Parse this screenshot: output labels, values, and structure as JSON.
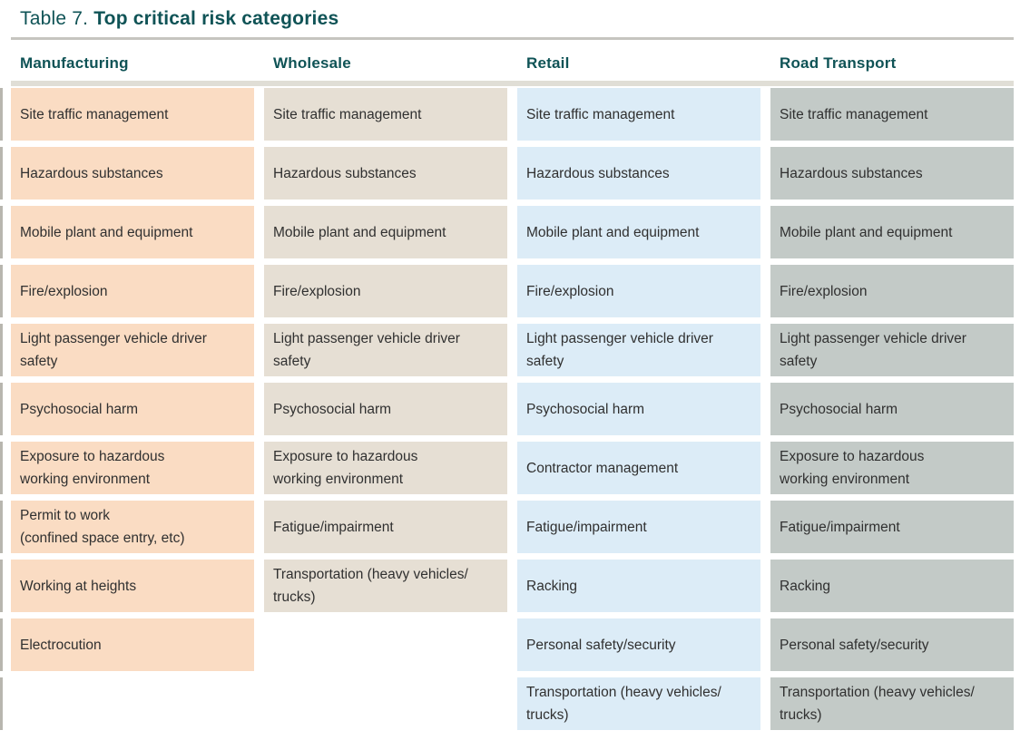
{
  "title": {
    "label_prefix": "Table 7.",
    "label_main": "Top critical risk categories"
  },
  "colors": {
    "heading_teal": "#0f5356",
    "cell_text": "#303030",
    "title_rule": "#c6c5c0",
    "header_rule": "#e0ded6",
    "manufacturing_cell": "#fadcc3",
    "wholesale_cell": "#e6dfd4",
    "retail_cell": "#dcecf7",
    "road_transport_cell": "#c3cac7"
  },
  "table": {
    "columns": [
      {
        "id": "manufacturing",
        "label": "Manufacturing",
        "cell_color": "#fadcc3",
        "items": [
          "Site traffic management",
          "Hazardous substances",
          "Mobile plant and equipment",
          "Fire/explosion",
          "Light passenger vehicle driver\nsafety",
          "Psychosocial harm",
          "Exposure to hazardous\nworking environment",
          "Permit to work\n(confined space entry, etc)",
          "Working at heights",
          "Electrocution"
        ]
      },
      {
        "id": "wholesale",
        "label": "Wholesale",
        "cell_color": "#e6dfd4",
        "items": [
          "Site traffic management",
          "Hazardous substances",
          "Mobile plant and equipment",
          "Fire/explosion",
          "Light passenger vehicle driver\nsafety",
          "Psychosocial harm",
          "Exposure to hazardous\nworking environment",
          "Fatigue/impairment",
          "Transportation (heavy vehicles/\ntrucks)"
        ]
      },
      {
        "id": "retail",
        "label": "Retail",
        "cell_color": "#dcecf7",
        "items": [
          "Site traffic management",
          "Hazardous substances",
          "Mobile plant and equipment",
          "Fire/explosion",
          "Light passenger vehicle driver\nsafety",
          "Psychosocial harm",
          "Contractor management",
          "Fatigue/impairment",
          "Racking",
          "Personal safety/security",
          "Transportation (heavy vehicles/\ntrucks)"
        ]
      },
      {
        "id": "road_transport",
        "label": "Road Transport",
        "cell_color": "#c3cac7",
        "items": [
          "Site traffic management",
          "Hazardous substances",
          "Mobile plant and equipment",
          "Fire/explosion",
          "Light passenger vehicle driver\nsafety",
          "Psychosocial harm",
          "Exposure to hazardous\nworking environment",
          "Fatigue/impairment",
          "Racking",
          "Personal safety/security",
          "Transportation (heavy vehicles/\ntrucks)"
        ]
      }
    ]
  }
}
